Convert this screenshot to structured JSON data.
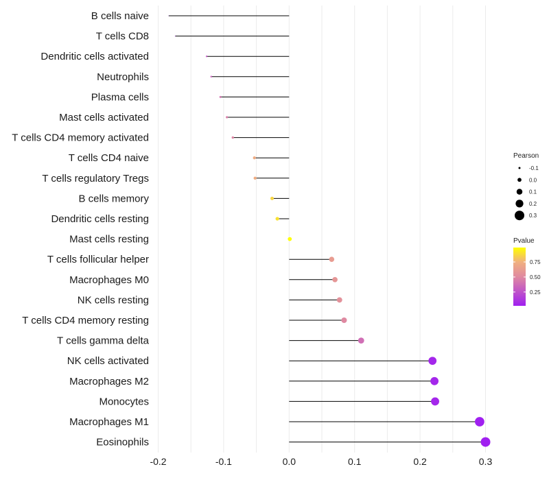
{
  "chart_data": {
    "type": "lollipop",
    "title": "",
    "xlabel": "",
    "ylabel": "",
    "xlim": [
      -0.2,
      0.3
    ],
    "x_ticks": [
      -0.2,
      -0.1,
      0.0,
      0.1,
      0.2,
      0.3
    ],
    "x_tick_labels": [
      "-0.2",
      "-0.1",
      "0.0",
      "0.1",
      "0.2",
      "0.3"
    ],
    "grid": true,
    "baseline": 0,
    "points": [
      {
        "label": "B cells naive",
        "pearson": -0.184,
        "pvalue": 0.02
      },
      {
        "label": "T cells CD8",
        "pearson": -0.174,
        "pvalue": 0.05
      },
      {
        "label": "Dendritic cells activated",
        "pearson": -0.126,
        "pvalue": 0.28
      },
      {
        "label": "Neutrophils",
        "pearson": -0.119,
        "pvalue": 0.33
      },
      {
        "label": "Plasma cells",
        "pearson": -0.105,
        "pvalue": 0.4
      },
      {
        "label": "Mast cells activated",
        "pearson": -0.095,
        "pvalue": 0.45
      },
      {
        "label": "T cells CD4 memory activated",
        "pearson": -0.086,
        "pvalue": 0.48
      },
      {
        "label": "T cells CD4 naive",
        "pearson": -0.053,
        "pvalue": 0.72
      },
      {
        "label": "T cells regulatory  Tregs ",
        "pearson": -0.052,
        "pvalue": 0.73
      },
      {
        "label": "B cells memory",
        "pearson": -0.026,
        "pvalue": 0.86
      },
      {
        "label": "Dendritic cells resting",
        "pearson": -0.018,
        "pvalue": 0.9
      },
      {
        "label": "Mast cells resting",
        "pearson": 0.001,
        "pvalue": 0.99
      },
      {
        "label": "T cells follicular helper",
        "pearson": 0.065,
        "pvalue": 0.62
      },
      {
        "label": "Macrophages M0",
        "pearson": 0.07,
        "pvalue": 0.58
      },
      {
        "label": "NK cells resting",
        "pearson": 0.077,
        "pvalue": 0.55
      },
      {
        "label": "T cells CD4 memory resting",
        "pearson": 0.084,
        "pvalue": 0.5
      },
      {
        "label": "T cells gamma delta",
        "pearson": 0.11,
        "pvalue": 0.38
      },
      {
        "label": "NK cells activated",
        "pearson": 0.219,
        "pvalue": 0.05
      },
      {
        "label": "Macrophages M2",
        "pearson": 0.222,
        "pvalue": 0.05
      },
      {
        "label": "Monocytes",
        "pearson": 0.223,
        "pvalue": 0.05
      },
      {
        "label": "Macrophages M1",
        "pearson": 0.291,
        "pvalue": 0.02
      },
      {
        "label": "Eosinophils",
        "pearson": 0.3,
        "pvalue": 0.02
      }
    ],
    "legend_size": {
      "title": "Pearson",
      "breaks": [
        -0.1,
        0.0,
        0.1,
        0.2,
        0.3
      ],
      "labels": [
        "-0.1",
        "0.0",
        "0.1",
        "0.2",
        "0.3"
      ]
    },
    "legend_color": {
      "title": "Pvalue",
      "breaks": [
        0.75,
        0.5,
        0.25
      ],
      "labels": [
        "0.75",
        "0.50",
        "0.25"
      ],
      "range": [
        0.02,
        0.99
      ],
      "low_color": "#a020f0",
      "high_color": "#ffff00"
    },
    "colors": {
      "stem": "#000000",
      "grid": "#ebebeb",
      "text": "#1a1a1a"
    },
    "legend_position": "right"
  }
}
